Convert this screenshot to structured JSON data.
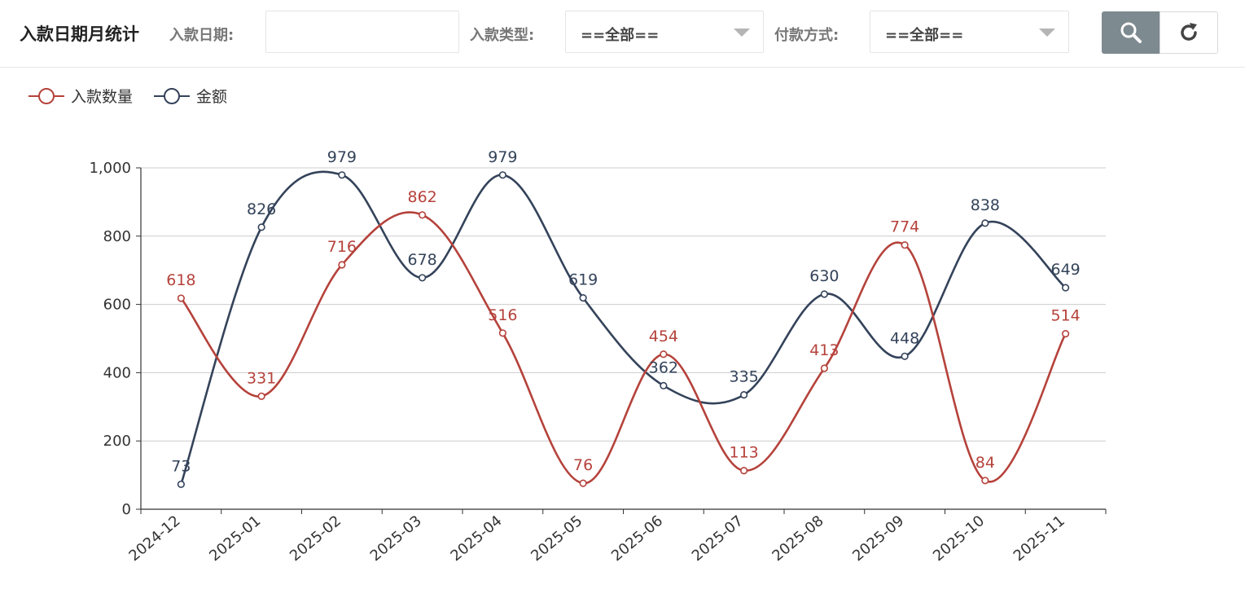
{
  "header": {
    "title": "入款日期月统计",
    "date_label": "入款日期:",
    "date_value": "",
    "type_label": "入款类型:",
    "type_value": "==全部==",
    "pay_label": "付款方式:",
    "pay_value": "==全部==",
    "search_icon": "search-icon",
    "refresh_icon": "refresh-icon"
  },
  "chart_data": {
    "type": "line",
    "smooth": true,
    "categories": [
      "2024-12",
      "2025-01",
      "2025-02",
      "2025-03",
      "2025-04",
      "2025-05",
      "2025-06",
      "2025-07",
      "2025-08",
      "2025-09",
      "2025-10",
      "2025-11"
    ],
    "series": [
      {
        "name": "入款数量",
        "color": "#b5423b",
        "values": [
          618,
          331,
          716,
          862,
          516,
          76,
          454,
          113,
          413,
          774,
          84,
          514
        ]
      },
      {
        "name": "金额",
        "color": "#34435a",
        "values": [
          73,
          826,
          979,
          678,
          979,
          619,
          362,
          335,
          630,
          448,
          838,
          649
        ]
      }
    ],
    "yticks": [
      "0",
      "200",
      "400",
      "600",
      "800",
      "1,000"
    ],
    "ylim": [
      0,
      1000
    ],
    "grid": true,
    "legend": "top-left"
  }
}
